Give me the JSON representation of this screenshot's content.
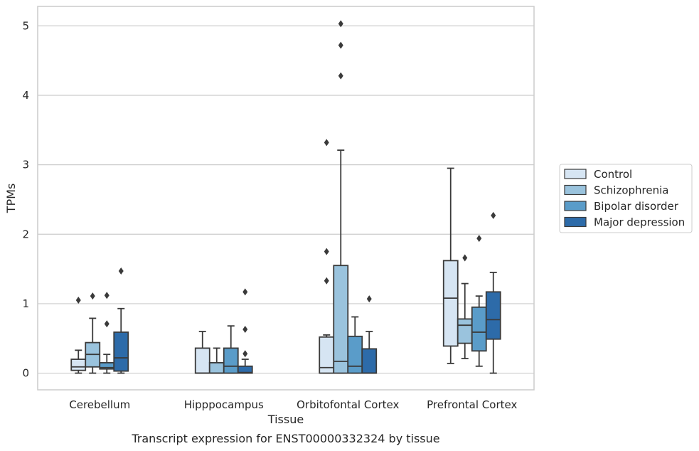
{
  "chart_data": {
    "type": "box",
    "title": "",
    "caption": "Transcript expression for ENST00000332324 by tissue",
    "xlabel": "Tissue",
    "ylabel": "TPMs",
    "ylim": [
      -0.24,
      5.28
    ],
    "yticks": [
      0,
      1,
      2,
      3,
      4,
      5
    ],
    "grid": "horizontal",
    "legend_position": "right",
    "categories": [
      "Cerebellum",
      "Hipppocampus",
      "Orbitofontal Cortex",
      "Prefrontal Cortex"
    ],
    "series": [
      {
        "name": "Control",
        "color": "#d6e5f3",
        "boxes": [
          {
            "whisker_low": 0.0,
            "q1": 0.04,
            "median": 0.09,
            "q3": 0.2,
            "whisker_high": 0.33,
            "outliers": [
              1.05
            ]
          },
          {
            "whisker_low": 0.0,
            "q1": 0.0,
            "median": 0.0,
            "q3": 0.36,
            "whisker_high": 0.6,
            "outliers": []
          },
          {
            "whisker_low": 0.0,
            "q1": 0.0,
            "median": 0.08,
            "q3": 0.52,
            "whisker_high": 0.55,
            "outliers": [
              1.33,
              1.75,
              3.32
            ]
          },
          {
            "whisker_low": 0.14,
            "q1": 0.39,
            "median": 1.08,
            "q3": 1.62,
            "whisker_high": 2.95,
            "outliers": []
          }
        ]
      },
      {
        "name": "Schizophrenia",
        "color": "#9ac3dd",
        "boxes": [
          {
            "whisker_low": 0.0,
            "q1": 0.09,
            "median": 0.27,
            "q3": 0.44,
            "whisker_high": 0.79,
            "outliers": [
              1.11
            ]
          },
          {
            "whisker_low": 0.0,
            "q1": 0.0,
            "median": 0.0,
            "q3": 0.15,
            "whisker_high": 0.36,
            "outliers": []
          },
          {
            "whisker_low": 0.0,
            "q1": 0.0,
            "median": 0.17,
            "q3": 1.55,
            "whisker_high": 3.21,
            "outliers": [
              4.28,
              4.72,
              5.03
            ]
          },
          {
            "whisker_low": 0.21,
            "q1": 0.43,
            "median": 0.69,
            "q3": 0.78,
            "whisker_high": 1.29,
            "outliers": [
              1.66
            ]
          }
        ]
      },
      {
        "name": "Bipolar disorder",
        "color": "#5a9cc9",
        "boxes": [
          {
            "whisker_low": 0.0,
            "q1": 0.06,
            "median": 0.08,
            "q3": 0.15,
            "whisker_high": 0.27,
            "outliers": [
              0.71,
              1.12
            ]
          },
          {
            "whisker_low": 0.0,
            "q1": 0.0,
            "median": 0.1,
            "q3": 0.36,
            "whisker_high": 0.68,
            "outliers": []
          },
          {
            "whisker_low": 0.0,
            "q1": 0.0,
            "median": 0.1,
            "q3": 0.53,
            "whisker_high": 0.81,
            "outliers": []
          },
          {
            "whisker_low": 0.1,
            "q1": 0.32,
            "median": 0.59,
            "q3": 0.95,
            "whisker_high": 1.11,
            "outliers": [
              1.94
            ]
          }
        ]
      },
      {
        "name": "Major depression",
        "color": "#2d6ba9",
        "boxes": [
          {
            "whisker_low": 0.0,
            "q1": 0.03,
            "median": 0.22,
            "q3": 0.59,
            "whisker_high": 0.93,
            "outliers": [
              1.47
            ]
          },
          {
            "whisker_low": 0.0,
            "q1": 0.0,
            "median": 0.01,
            "q3": 0.1,
            "whisker_high": 0.2,
            "outliers": [
              0.28,
              0.63,
              1.17
            ]
          },
          {
            "whisker_low": 0.0,
            "q1": 0.0,
            "median": 0.0,
            "q3": 0.35,
            "whisker_high": 0.6,
            "outliers": [
              1.07
            ]
          },
          {
            "whisker_low": 0.0,
            "q1": 0.49,
            "median": 0.77,
            "q3": 1.17,
            "whisker_high": 1.45,
            "outliers": [
              2.27
            ]
          }
        ]
      }
    ]
  }
}
